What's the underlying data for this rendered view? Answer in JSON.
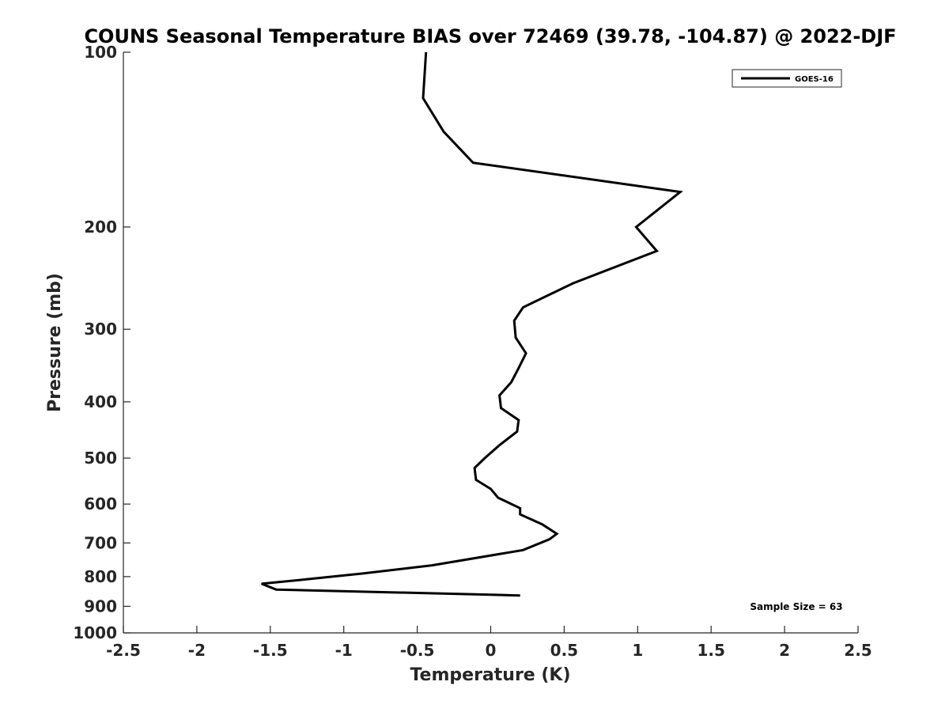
{
  "chart_data": {
    "type": "line",
    "title": "COUNS Seasonal Temperature BIAS over 72469 (39.78, -104.87) @ 2022-DJF",
    "xlabel": "Temperature (K)",
    "ylabel": "Pressure (mb)",
    "xlim": [
      -2.5,
      2.5
    ],
    "ylim": [
      1000,
      100
    ],
    "y_scale": "log",
    "x_ticks": [
      -2.5,
      -2,
      -1.5,
      -1,
      -0.5,
      0,
      0.5,
      1,
      1.5,
      2,
      2.5
    ],
    "x_tick_labels": [
      "-2.5",
      "-2",
      "-1.5",
      "-1",
      "-0.5",
      "0",
      "0.5",
      "1",
      "1.5",
      "2",
      "2.5"
    ],
    "y_ticks": [
      100,
      200,
      300,
      400,
      500,
      600,
      700,
      800,
      900,
      1000
    ],
    "y_tick_labels": [
      "100",
      "200",
      "300",
      "400",
      "500",
      "600",
      "700",
      "800",
      "900",
      "1000"
    ],
    "grid": false,
    "legend": {
      "position": "top-right",
      "entries": [
        "GOES-16"
      ]
    },
    "annotation": "Sample Size = 63",
    "series": [
      {
        "name": "GOES-16",
        "color": "#000000",
        "points": [
          [
            -0.44,
            100
          ],
          [
            -0.46,
            120
          ],
          [
            -0.32,
            137
          ],
          [
            -0.12,
            155
          ],
          [
            1.29,
            174
          ],
          [
            0.99,
            200
          ],
          [
            1.13,
            220
          ],
          [
            0.56,
            250
          ],
          [
            0.22,
            275
          ],
          [
            0.16,
            290
          ],
          [
            0.17,
            310
          ],
          [
            0.24,
            330
          ],
          [
            0.19,
            350
          ],
          [
            0.14,
            370
          ],
          [
            0.06,
            390
          ],
          [
            0.07,
            410
          ],
          [
            0.19,
            430
          ],
          [
            0.18,
            450
          ],
          [
            0.06,
            475
          ],
          [
            -0.04,
            500
          ],
          [
            -0.11,
            520
          ],
          [
            -0.1,
            545
          ],
          [
            0.0,
            565
          ],
          [
            0.05,
            585
          ],
          [
            0.2,
            610
          ],
          [
            0.2,
            625
          ],
          [
            0.35,
            650
          ],
          [
            0.45,
            675
          ],
          [
            0.4,
            690
          ],
          [
            0.22,
            720
          ],
          [
            -0.4,
            765
          ],
          [
            -0.87,
            790
          ],
          [
            -1.28,
            810
          ],
          [
            -1.56,
            823
          ],
          [
            -1.46,
            842
          ],
          [
            0.2,
            862
          ]
        ]
      }
    ]
  }
}
